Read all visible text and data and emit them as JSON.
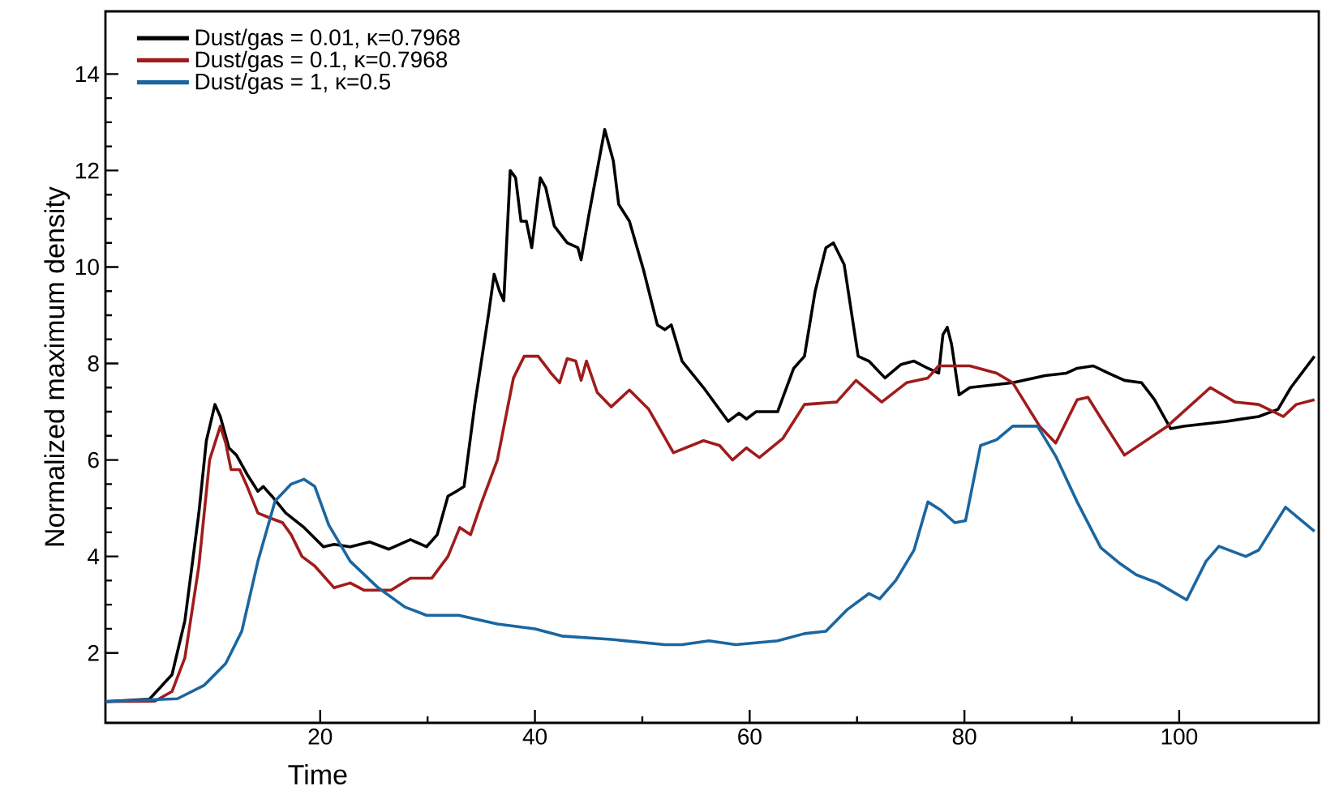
{
  "chart_data": {
    "type": "line",
    "xlabel": "Time",
    "ylabel": "Normalized maximum density",
    "xlim": [
      0,
      113
    ],
    "ylim": [
      0.55,
      15.3
    ],
    "xticks": [
      20,
      40,
      60,
      80,
      100
    ],
    "yticks": [
      2,
      4,
      6,
      8,
      10,
      12,
      14
    ],
    "legend": "top left",
    "grid": false,
    "series": [
      {
        "name": "Dust/gas = 0.01, κ=0.7968",
        "color": "#000000",
        "x": [
          0,
          4.1,
          6.2,
          7.4,
          8.7,
          9.4,
          10.2,
          10.7,
          11.5,
          12.2,
          13.2,
          14.2,
          14.7,
          15.5,
          16.8,
          18.5,
          20.3,
          21.3,
          22.8,
          24.6,
          26.4,
          28.4,
          29.9,
          30.9,
          31.9,
          32.7,
          33.4,
          34.4,
          35.7,
          36.2,
          36.7,
          37.1,
          37.7,
          38.2,
          38.7,
          39.2,
          39.7,
          40.5,
          41.0,
          41.8,
          43.0,
          44.0,
          44.3,
          45.0,
          46.5,
          47.3,
          47.8,
          48.8,
          50.1,
          51.4,
          52.1,
          52.7,
          53.7,
          55.7,
          58.0,
          59.0,
          59.7,
          60.6,
          62.6,
          64.1,
          65.1,
          66.1,
          67.1,
          67.8,
          68.8,
          70.1,
          71.1,
          72.6,
          74.1,
          75.3,
          76.6,
          77.6,
          78.0,
          78.4,
          78.8,
          79.5,
          80.5,
          84.5,
          87.5,
          89.5,
          90.5,
          92.0,
          93.4,
          94.9,
          96.5,
          97.7,
          99.2,
          100.4,
          104.4,
          107.4,
          109.2,
          110.4,
          112.6
        ],
        "values": [
          0.99,
          1.04,
          1.55,
          2.67,
          4.9,
          6.4,
          7.15,
          6.9,
          6.25,
          6.1,
          5.7,
          5.35,
          5.45,
          5.25,
          4.9,
          4.6,
          4.2,
          4.25,
          4.2,
          4.3,
          4.15,
          4.35,
          4.2,
          4.45,
          5.25,
          5.35,
          5.45,
          7.15,
          9.05,
          9.85,
          9.5,
          9.3,
          12.0,
          11.85,
          10.95,
          10.95,
          10.4,
          11.85,
          11.65,
          10.85,
          10.5,
          10.4,
          10.15,
          11.05,
          12.85,
          12.2,
          11.3,
          10.95,
          9.95,
          8.8,
          8.7,
          8.8,
          8.05,
          7.5,
          6.8,
          6.97,
          6.85,
          7.0,
          7.0,
          7.9,
          8.15,
          9.5,
          10.4,
          10.5,
          10.05,
          8.15,
          8.05,
          7.7,
          7.98,
          8.05,
          7.9,
          7.8,
          8.6,
          8.75,
          8.4,
          7.35,
          7.5,
          7.6,
          7.75,
          7.8,
          7.9,
          7.95,
          7.8,
          7.65,
          7.6,
          7.25,
          6.65,
          6.7,
          6.8,
          6.9,
          7.05,
          7.5,
          8.15
        ]
      },
      {
        "name": "Dust/gas = 0.1, κ=0.7968",
        "color": "#a01c1c",
        "x": [
          0,
          4.6,
          6.2,
          7.4,
          8.7,
          9.7,
          10.7,
          11.2,
          11.7,
          12.5,
          13.2,
          14.2,
          15.3,
          16.5,
          17.3,
          18.3,
          19.5,
          21.3,
          22.8,
          24.1,
          26.6,
          28.4,
          30.4,
          31.9,
          33.0,
          34.0,
          35.0,
          36.5,
          38.0,
          39.0,
          40.3,
          41.5,
          42.3,
          43.0,
          43.8,
          44.3,
          44.8,
          45.8,
          47.1,
          48.8,
          50.6,
          52.9,
          55.7,
          57.2,
          58.4,
          59.7,
          60.9,
          63.1,
          65.1,
          68.1,
          69.9,
          72.3,
          74.6,
          76.6,
          77.6,
          80.5,
          83.0,
          84.5,
          87.0,
          88.5,
          90.5,
          91.5,
          92.9,
          94.9,
          98.9,
          101.4,
          102.9,
          105.2,
          107.4,
          109.7,
          110.9,
          112.6
        ],
        "values": [
          0.99,
          1.0,
          1.2,
          1.9,
          3.8,
          6.0,
          6.7,
          6.35,
          5.8,
          5.8,
          5.45,
          4.9,
          4.8,
          4.7,
          4.45,
          4.0,
          3.8,
          3.35,
          3.45,
          3.3,
          3.3,
          3.55,
          3.55,
          4.0,
          4.6,
          4.45,
          5.1,
          6.0,
          7.7,
          8.15,
          8.15,
          7.8,
          7.6,
          8.1,
          8.05,
          7.65,
          8.05,
          7.4,
          7.1,
          7.45,
          7.05,
          6.15,
          6.4,
          6.3,
          6.0,
          6.25,
          6.05,
          6.45,
          7.15,
          7.2,
          7.65,
          7.2,
          7.6,
          7.7,
          7.95,
          7.95,
          7.8,
          7.6,
          6.7,
          6.35,
          7.25,
          7.3,
          6.8,
          6.1,
          6.7,
          7.2,
          7.5,
          7.2,
          7.15,
          6.9,
          7.15,
          7.25
        ]
      },
      {
        "name": "Dust/gas = 1, κ=0.5",
        "color": "#1a66a0",
        "x": [
          0,
          6.7,
          9.2,
          11.2,
          12.7,
          14.2,
          15.8,
          17.3,
          18.5,
          19.5,
          20.8,
          22.8,
          25.4,
          27.9,
          29.9,
          32.9,
          36.5,
          40.0,
          42.5,
          47.1,
          52.1,
          53.7,
          56.2,
          58.7,
          62.6,
          65.1,
          67.1,
          69.1,
          71.1,
          72.1,
          73.6,
          75.3,
          76.6,
          77.8,
          79.1,
          80.1,
          81.5,
          83.0,
          84.5,
          86.8,
          88.5,
          90.5,
          92.7,
          94.5,
          96.0,
          98.0,
          100.7,
          102.5,
          103.7,
          106.2,
          107.4,
          109.9,
          112.6
        ],
        "values": [
          0.99,
          1.05,
          1.33,
          1.78,
          2.45,
          3.9,
          5.15,
          5.5,
          5.6,
          5.45,
          4.65,
          3.9,
          3.35,
          2.95,
          2.78,
          2.78,
          2.6,
          2.5,
          2.35,
          2.28,
          2.17,
          2.17,
          2.25,
          2.17,
          2.25,
          2.4,
          2.45,
          2.9,
          3.23,
          3.12,
          3.5,
          4.13,
          5.13,
          4.96,
          4.7,
          4.74,
          6.3,
          6.42,
          6.7,
          6.7,
          6.08,
          5.13,
          4.18,
          3.85,
          3.62,
          3.45,
          3.1,
          3.9,
          4.21,
          4.0,
          4.13,
          5.02,
          4.52
        ]
      }
    ]
  }
}
